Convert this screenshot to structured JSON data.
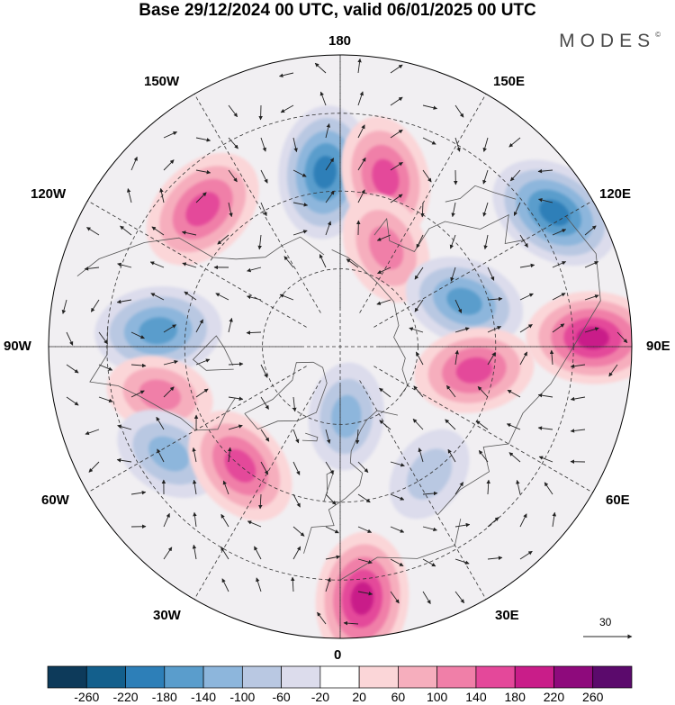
{
  "title": "Base 29/12/2024 00 UTC, valid 06/01/2025 00 UTC",
  "brand": {
    "name": "MODES",
    "mark": "©"
  },
  "longitude_labels": [
    {
      "id": "180",
      "text": "180"
    },
    {
      "id": "150e",
      "text": "150E"
    },
    {
      "id": "120e",
      "text": "120E"
    },
    {
      "id": "90e",
      "text": "90E"
    },
    {
      "id": "60e",
      "text": "60E"
    },
    {
      "id": "30e",
      "text": "30E"
    },
    {
      "id": "0",
      "text": "0"
    },
    {
      "id": "30w",
      "text": "30W"
    },
    {
      "id": "60w",
      "text": "60W"
    },
    {
      "id": "90w",
      "text": "90W"
    },
    {
      "id": "120w",
      "text": "120W"
    },
    {
      "id": "150w",
      "text": "150W"
    }
  ],
  "reference_vector": {
    "label": "30"
  },
  "colorbar": {
    "ticks": [
      "-260",
      "-220",
      "-180",
      "-140",
      "-100",
      "-60",
      "-20",
      "20",
      "60",
      "100",
      "140",
      "180",
      "220",
      "260"
    ],
    "colors": [
      "#0d3a5a",
      "#135f8c",
      "#2d7fb8",
      "#5a9dcc",
      "#8db6dc",
      "#b9c8e2",
      "#dcdcec",
      "#ffffff",
      "#fbd6d8",
      "#f6aebd",
      "#f07fa8",
      "#e4489a",
      "#c91d89",
      "#8e0a7c",
      "#5b0a6c"
    ]
  },
  "map_features": {
    "anomaly_centers": [
      {
        "kind": "negative",
        "value": -180,
        "lon": -175,
        "lat": 45
      },
      {
        "kind": "positive",
        "value": 150,
        "lon": 165,
        "lat": 45
      },
      {
        "kind": "positive",
        "value": 170,
        "lon": -135,
        "lat": 40
      },
      {
        "kind": "negative",
        "value": -180,
        "lon": 122,
        "lat": 25
      },
      {
        "kind": "positive",
        "value": 120,
        "lon": 155,
        "lat": 62
      },
      {
        "kind": "negative",
        "value": -140,
        "lon": 110,
        "lat": 56
      },
      {
        "kind": "negative",
        "value": -160,
        "lon": -95,
        "lat": 43
      },
      {
        "kind": "positive",
        "value": 180,
        "lon": 92,
        "lat": 25
      },
      {
        "kind": "positive",
        "value": 100,
        "lon": -75,
        "lat": 42
      },
      {
        "kind": "positive",
        "value": 140,
        "lon": 80,
        "lat": 55
      },
      {
        "kind": "negative",
        "value": -110,
        "lon": -58,
        "lat": 38
      },
      {
        "kind": "negative",
        "value": -100,
        "lon": 5,
        "lat": 72
      },
      {
        "kind": "positive",
        "value": 150,
        "lon": -40,
        "lat": 50
      },
      {
        "kind": "negative",
        "value": -70,
        "lon": 35,
        "lat": 50
      },
      {
        "kind": "positive",
        "value": 180,
        "lon": 5,
        "lat": 25
      }
    ]
  }
}
